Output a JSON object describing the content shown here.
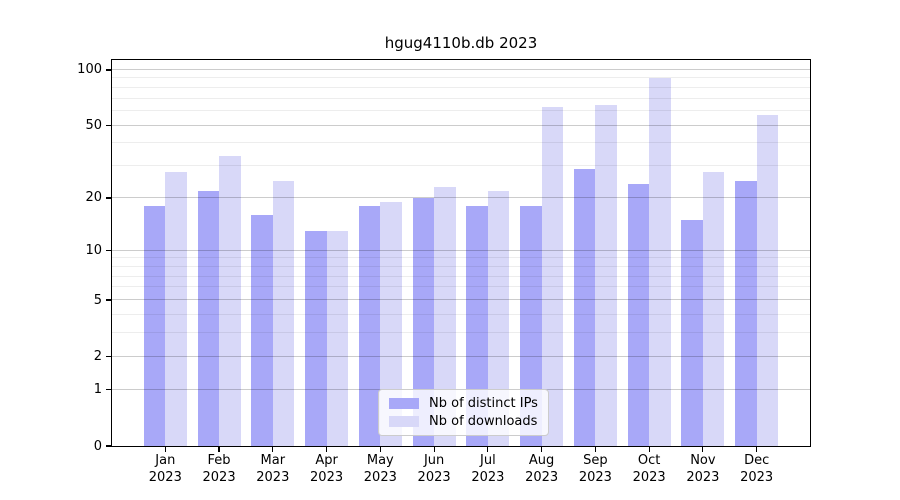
{
  "title": "hgug4110b.db 2023",
  "legend": {
    "items": [
      {
        "label": "Nb of distinct IPs",
        "color": "#a8a8f8"
      },
      {
        "label": "Nb of downloads",
        "color": "#d8d8f8"
      }
    ],
    "position": "lower center"
  },
  "chart_data": {
    "type": "bar",
    "title": "hgug4110b.db 2023",
    "months": [
      "Jan",
      "Feb",
      "Mar",
      "Apr",
      "May",
      "Jun",
      "Jul",
      "Aug",
      "Sep",
      "Oct",
      "Nov",
      "Dec"
    ],
    "year": "2023",
    "categories": [
      "Jan 2023",
      "Feb 2023",
      "Mar 2023",
      "Apr 2023",
      "May 2023",
      "Jun 2023",
      "Jul 2023",
      "Aug 2023",
      "Sep 2023",
      "Oct 2023",
      "Nov 2023",
      "Dec 2023"
    ],
    "series": [
      {
        "name": "Nb of distinct IPs",
        "color": "#a8a8f8",
        "values": [
          18,
          22,
          16,
          13,
          18,
          20,
          18,
          18,
          29,
          24,
          15,
          25
        ]
      },
      {
        "name": "Nb of downloads",
        "color": "#d8d8f8",
        "values": [
          28,
          34,
          25,
          13,
          19,
          23,
          22,
          63,
          65,
          90,
          28,
          57
        ]
      }
    ],
    "yscale": "log1p",
    "ylim": [
      0,
      100
    ],
    "y_ticks": [
      0,
      1,
      2,
      5,
      10,
      20,
      50,
      100
    ],
    "y_minor_ticks": [
      3,
      4,
      6,
      7,
      8,
      9,
      30,
      40,
      60,
      70,
      80,
      90
    ],
    "grid": true,
    "legend_position": "lower center"
  },
  "colors": {
    "background": "#ffffff",
    "axis": "#000000",
    "grid_major": "rgba(0,0,0,0.20)",
    "grid_minor": "rgba(0,0,0,0.07)",
    "bar_ips": "#a8a8f8",
    "bar_downloads": "#d8d8f8"
  }
}
